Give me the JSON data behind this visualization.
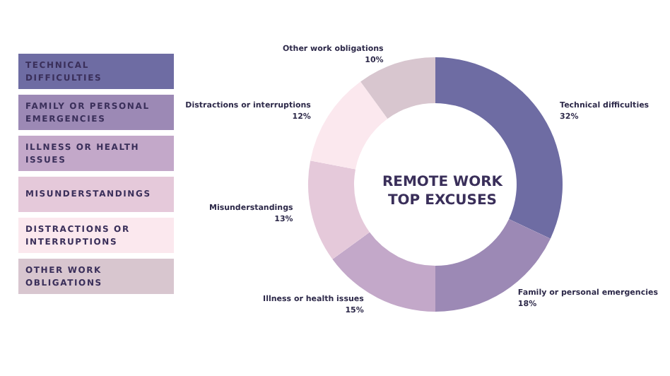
{
  "chart_data": {
    "type": "donut",
    "title": "REMOTE WORK\nTOP EXCUSES",
    "categories": [
      "Technical difficulties",
      "Family or personal emergencies",
      "Illness or health issues",
      "Misunderstandings",
      "Distractions or interruptions",
      "Other work obligations"
    ],
    "values": [
      32,
      18,
      15,
      13,
      12,
      10
    ],
    "value_labels": [
      "32%",
      "18%",
      "15%",
      "13%",
      "12%",
      "10%"
    ],
    "colors": [
      "#6e6ca3",
      "#9c89b5",
      "#c3a8c9",
      "#e5c9da",
      "#fbe8ee",
      "#d8c6cf"
    ],
    "annotations": [
      "TECHNICAL DIFFICULTIES",
      "FAMILY OR PERSONAL EMERGENCIES",
      "ILLNESS OR HEALTH ISSUES",
      "MISUNDERSTANDINGS",
      "DISTRACTIONS OR INTERRUPTIONS",
      "OTHER WORK OBLIGATIONS"
    ]
  }
}
